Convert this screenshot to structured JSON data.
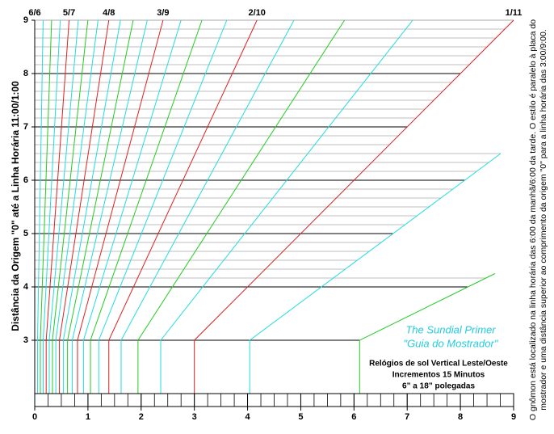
{
  "chart_data": {
    "type": "sundial-guide",
    "ylabel": "Distância da Origem \"0\" até a Linha Horária 11:00/1:00",
    "side_note": [
      "O gnômon está localizado na linha horária das 6:00 da manhã/6:00 da tarde. O estilo é paralelo à placa do",
      "mostrador e uma distância superior ao comprimento da origem \"0\" para a linha horária das 3:00/9:00."
    ],
    "box": {
      "title": "The Sundial Primer",
      "subtitle": "\"Guia do Mostrador\"",
      "lines": [
        "Relógios de sol Vertical Leste/Oeste",
        "Incrementos 15 Minutos",
        "6” a 18” polegadas"
      ]
    },
    "xlim": [
      0,
      9
    ],
    "ylim": [
      2,
      9
    ],
    "xticks": [
      0,
      1,
      2,
      3,
      4,
      5,
      6,
      7,
      8,
      9
    ],
    "yticks": [
      3,
      4,
      5,
      6,
      7,
      8,
      9
    ],
    "ruler_step": 0.25,
    "minor_grid": {
      "from": 4,
      "to": 9,
      "per_unit": 6
    },
    "base_y": 3,
    "lines": [
      {
        "x": 0,
        "y_end": 9,
        "color": "#e02020",
        "label": "6/6"
      },
      {
        "x": 0.0527,
        "y_end": 9,
        "color": "#22dddd"
      },
      {
        "x": 0.1058,
        "y_end": 9,
        "color": "#22cc22"
      },
      {
        "x": 0.1599,
        "y_end": 9,
        "color": "#22dddd"
      },
      {
        "x": 0.2154,
        "y_end": 9,
        "color": "#e02020",
        "label": "5/7"
      },
      {
        "x": 0.2729,
        "y_end": 9,
        "color": "#22dddd"
      },
      {
        "x": 0.333,
        "y_end": 9,
        "color": "#22cc22"
      },
      {
        "x": 0.3964,
        "y_end": 9,
        "color": "#22dddd"
      },
      {
        "x": 0.4641,
        "y_end": 9,
        "color": "#e02020",
        "label": "4/8"
      },
      {
        "x": 0.5371,
        "y_end": 9,
        "color": "#22dddd"
      },
      {
        "x": 0.6168,
        "y_end": 9,
        "color": "#22cc22"
      },
      {
        "x": 0.705,
        "y_end": 9,
        "color": "#22dddd"
      },
      {
        "x": 0.8038,
        "y_end": 9,
        "color": "#e02020",
        "label": "3/9"
      },
      {
        "x": 0.9165,
        "y_end": 9,
        "color": "#22dddd"
      },
      {
        "x": 1.0476,
        "y_end": 9,
        "color": "#22cc22"
      },
      {
        "x": 1.203,
        "y_end": 9,
        "color": "#22dddd"
      },
      {
        "x": 1.3923,
        "y_end": 9,
        "color": "#e02020",
        "label": "2/10"
      },
      {
        "x": 1.6241,
        "y_end": 9,
        "color": "#22dddd"
      },
      {
        "x": 1.9406,
        "y_end": 9,
        "color": "#22cc22"
      },
      {
        "x": 2.368,
        "y_end": 9,
        "color": "#22dddd"
      },
      {
        "x": 3,
        "y_end": 9,
        "color": "#e02020",
        "label": "1/11"
      },
      {
        "x": 4.0412,
        "y_end": 6.5,
        "color": "#22dddd"
      },
      {
        "x": 6.1057,
        "y_end": 4.25,
        "color": "#22cc22"
      }
    ]
  }
}
